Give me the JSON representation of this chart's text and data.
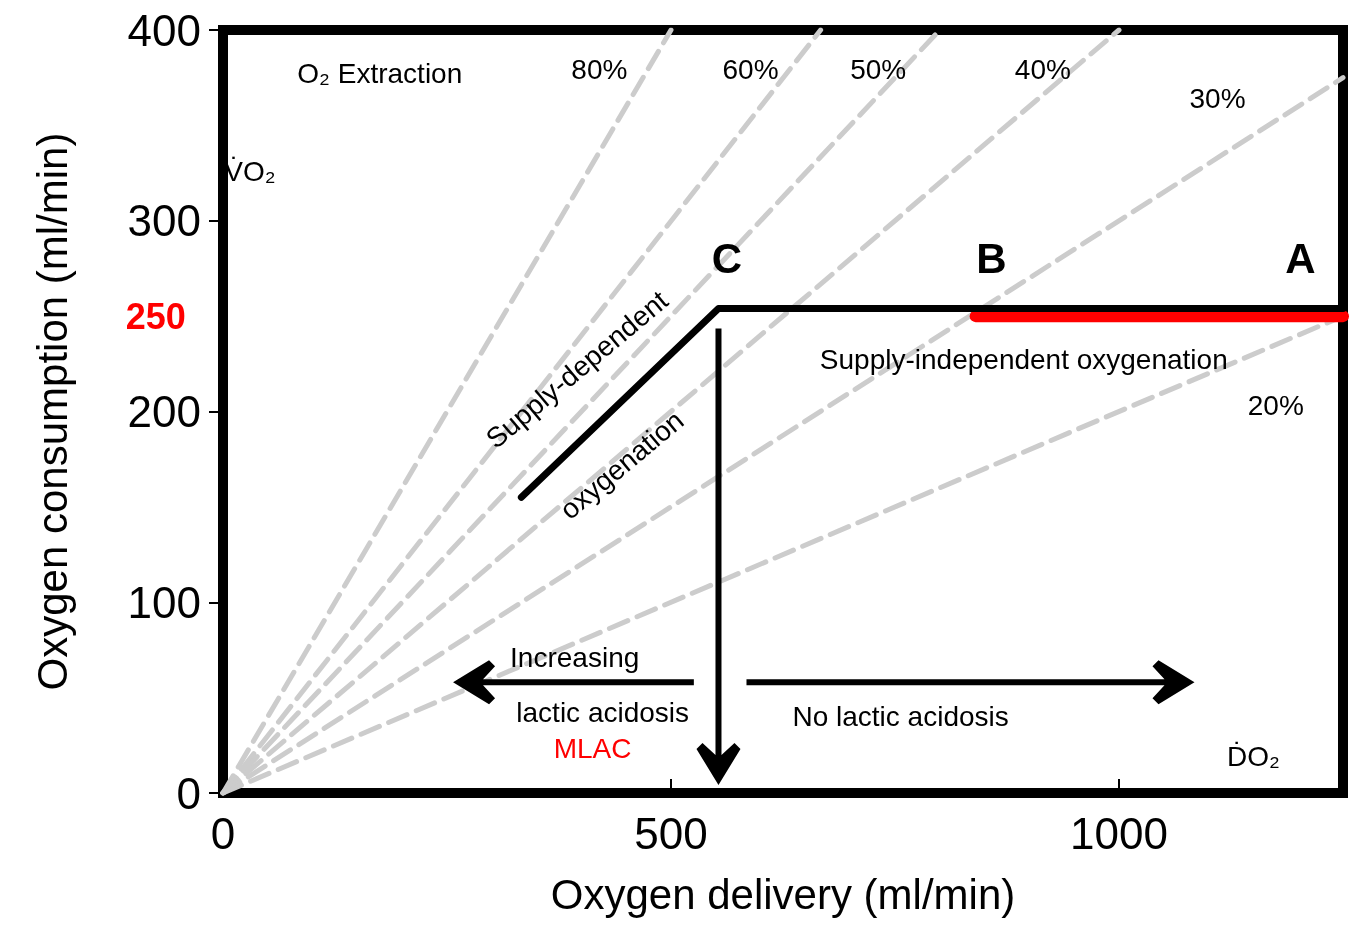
{
  "chart_data": {
    "type": "line",
    "xlabel": "Oxygen delivery (ml/min)",
    "ylabel": "Oxygen consumption (ml/min)",
    "xlim": [
      0,
      1250
    ],
    "xticks": [
      0,
      500,
      1000
    ],
    "ylim": [
      0,
      400
    ],
    "yticks": [
      0,
      100,
      200,
      300,
      400
    ],
    "grid": false,
    "marker": "none",
    "series": [
      {
        "color": "#000000",
        "x": [
          333,
          553,
          1250
        ],
        "values": [
          155,
          254,
          254
        ]
      },
      {
        "color": "#ff0000",
        "x": [
          840,
          1250
        ],
        "values": [
          250,
          250
        ]
      },
      {
        "color": "#cccccc",
        "line_style": "dashed",
        "x": [
          0,
          500
        ],
        "values": [
          0,
          400
        ]
      },
      {
        "color": "#cccccc",
        "line_style": "dashed",
        "x": [
          0,
          667
        ],
        "values": [
          0,
          400
        ]
      },
      {
        "color": "#cccccc",
        "line_style": "dashed",
        "x": [
          0,
          800
        ],
        "values": [
          0,
          400
        ]
      },
      {
        "color": "#cccccc",
        "line_style": "dashed",
        "x": [
          0,
          1000
        ],
        "values": [
          0,
          400
        ]
      },
      {
        "color": "#cccccc",
        "line_style": "dashed",
        "x": [
          0,
          1250
        ],
        "values": [
          0,
          375
        ]
      },
      {
        "color": "#cccccc",
        "line_style": "dashed",
        "x": [
          0,
          1250
        ],
        "values": [
          0,
          250
        ]
      }
    ],
    "annotations": [
      "250",
      "MLAC",
      "O₂ Extraction",
      "80%",
      "60%",
      "50%",
      "40%",
      "30%",
      "20%",
      "V̇O₂",
      "ḊO₂",
      "C",
      "B",
      "A",
      "Supply-dependent",
      "oxygenation",
      "Supply-independent oxygenation",
      "Increasing",
      "lactic acidosis",
      "No lactic acidosis"
    ]
  }
}
